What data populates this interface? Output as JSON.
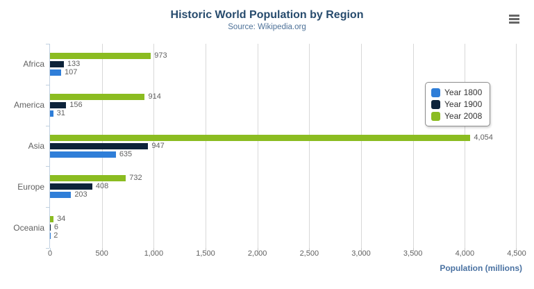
{
  "chart_data": {
    "type": "bar",
    "orientation": "horizontal",
    "title": "Historic World Population by Region",
    "subtitle": "Source: Wikipedia.org",
    "categories": [
      "Africa",
      "America",
      "Asia",
      "Europe",
      "Oceania"
    ],
    "series": [
      {
        "name": "Year 1800",
        "color": "#2f7ed8",
        "values": [
          107,
          31,
          635,
          203,
          2
        ]
      },
      {
        "name": "Year 1900",
        "color": "#0d233a",
        "values": [
          133,
          156,
          947,
          408,
          6
        ]
      },
      {
        "name": "Year 2008",
        "color": "#8bbc21",
        "values": [
          973,
          914,
          4054,
          732,
          34
        ]
      }
    ],
    "series_render_order_top_to_bottom": [
      "Year 2008",
      "Year 1900",
      "Year 1800"
    ],
    "data_labels": true,
    "xlabel": "Population (millions)",
    "ylabel": "",
    "xlim": [
      0,
      4500
    ],
    "x_ticks": [
      0,
      500,
      1000,
      1500,
      2000,
      2500,
      3000,
      3500,
      4000,
      4500
    ],
    "grid": true,
    "legend_position": "inside-right",
    "legend_items": [
      "Year 1800",
      "Year 1900",
      "Year 2008"
    ]
  },
  "controls": {
    "context_menu_icon": "hamburger"
  },
  "colors": {
    "title": "#274b6d",
    "subtitle": "#4d7198",
    "axis_labels": "#606060",
    "gridline": "#d8d8d8",
    "axis_line": "#c0d0e0",
    "axis_title": "#4a72a2",
    "legend_text": "#333333"
  }
}
